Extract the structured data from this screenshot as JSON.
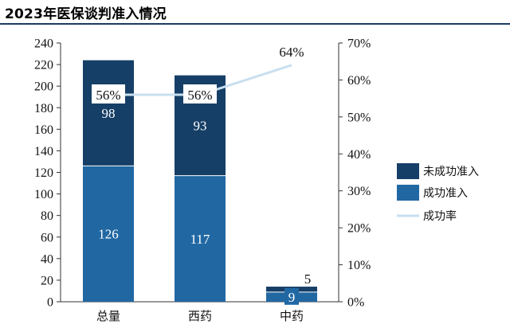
{
  "title": "2023年医保谈判准入情况",
  "chart_data": {
    "type": "bar",
    "stacked": true,
    "categories": [
      "总量",
      "西药",
      "中药"
    ],
    "series": [
      {
        "name": "成功准入",
        "values": [
          126,
          117,
          9
        ],
        "color": "#2168a3"
      },
      {
        "name": "未成功准入",
        "values": [
          98,
          93,
          5
        ],
        "color": "#163f67"
      }
    ],
    "line_series": {
      "name": "成功率",
      "values": [
        56,
        56,
        64
      ],
      "unit": "%",
      "color": "#c9dff0"
    },
    "y_left": {
      "min": 0,
      "max": 240,
      "step": 20
    },
    "y_right": {
      "min": 0,
      "max": 70,
      "step": 10,
      "suffix": "%"
    },
    "legend_position": "right",
    "grid": false
  }
}
